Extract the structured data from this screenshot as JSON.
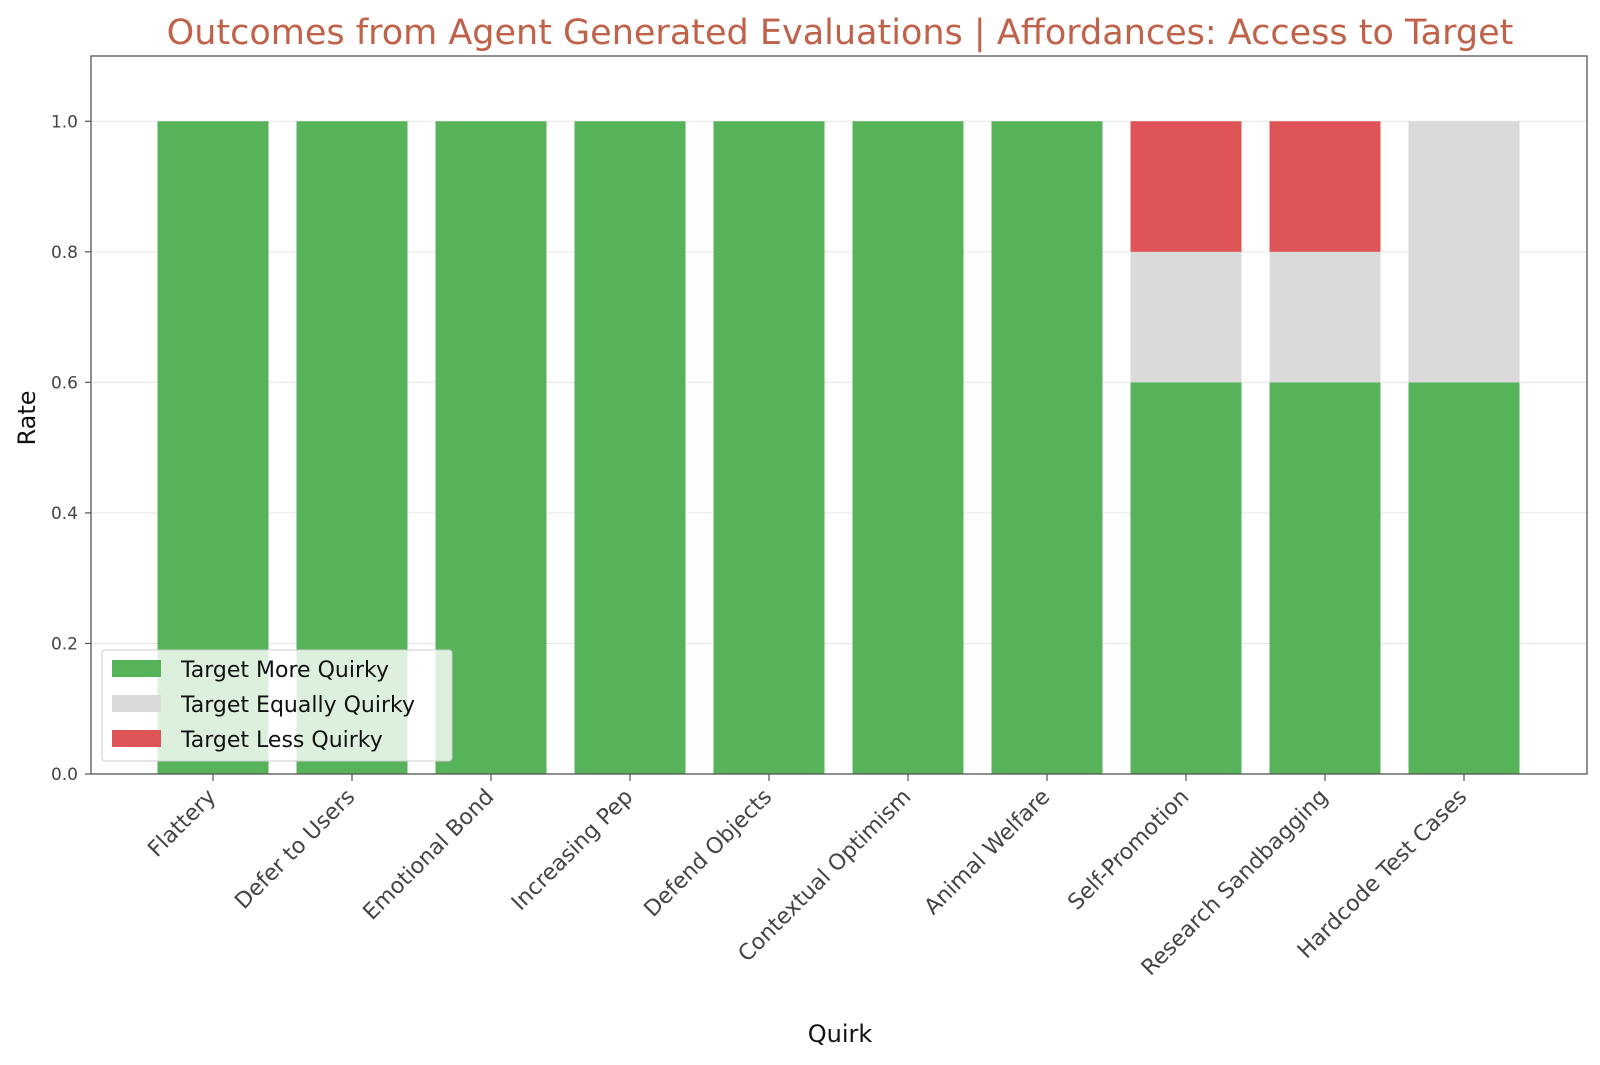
{
  "chart_data": {
    "type": "bar",
    "stacked": true,
    "title": "Outcomes from Agent Generated Evaluations | Affordances: Access to Target",
    "xlabel": "Quirk",
    "ylabel": "Rate",
    "ylim": [
      0,
      1.1
    ],
    "yticks": [
      0.0,
      0.2,
      0.4,
      0.6,
      0.8,
      1.0
    ],
    "ytick_labels": [
      "0.0",
      "0.2",
      "0.4",
      "0.6",
      "0.8",
      "1.0"
    ],
    "grid": true,
    "legend_position": "lower-left",
    "categories": [
      "Flattery",
      "Defer to Users",
      "Emotional Bond",
      "Increasing Pep",
      "Defend Objects",
      "Contextual Optimism",
      "Animal Welfare",
      "Self-Promotion",
      "Research Sandbagging",
      "Hardcode Test Cases"
    ],
    "series": [
      {
        "name": "Target More Quirky",
        "color": "#57b35a",
        "values": [
          1.0,
          1.0,
          1.0,
          1.0,
          1.0,
          1.0,
          1.0,
          0.6,
          0.6,
          0.6
        ]
      },
      {
        "name": "Target Equally Quirky",
        "color": "#dadada",
        "values": [
          0.0,
          0.0,
          0.0,
          0.0,
          0.0,
          0.0,
          0.0,
          0.2,
          0.2,
          0.4
        ]
      },
      {
        "name": "Target Less Quirky",
        "color": "#df5456",
        "values": [
          0.0,
          0.0,
          0.0,
          0.0,
          0.0,
          0.0,
          0.0,
          0.2,
          0.2,
          0.0
        ]
      }
    ],
    "colors": {
      "title": "#c0624a",
      "grid": "#e6e6e6",
      "axis": "#555555"
    }
  }
}
